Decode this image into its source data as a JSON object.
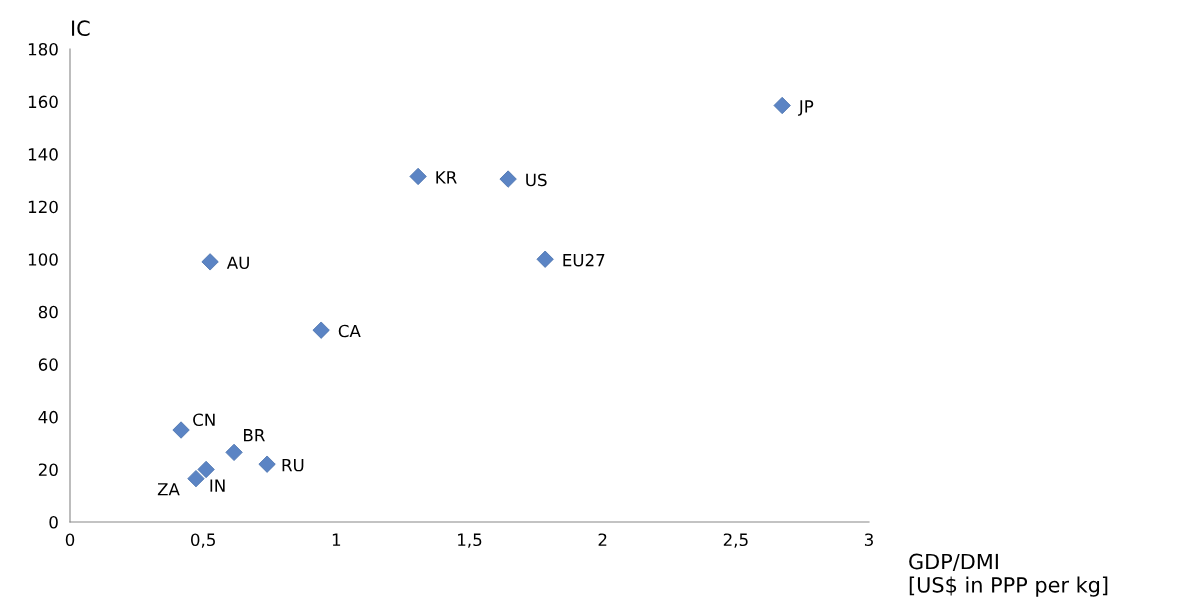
{
  "chart_data": {
    "type": "scatter",
    "xlabel": "GDP/DMI\n[US$ in PPP per kg]",
    "ylabel": "IC",
    "x": [
      2.674,
      1.307,
      1.645,
      1.784,
      0.526,
      0.943,
      0.417,
      0.616,
      0.74,
      0.511,
      0.473
    ],
    "series": [
      {
        "color": "#5b84c4",
        "values": [
          158.5,
          131.5,
          130.5,
          100,
          99,
          73,
          35,
          26.5,
          22,
          20,
          16.5
        ]
      }
    ],
    "marker": "diamond",
    "grid": false,
    "legend": false,
    "xlim": [
      0,
      3
    ],
    "xticks": [
      0,
      {
        "value": 0.5,
        "label": "0,5"
      },
      1,
      {
        "value": 1.5,
        "label": "1,5"
      },
      2,
      {
        "value": 2.5,
        "label": "2,5"
      },
      3
    ],
    "ylim": [
      0,
      180
    ],
    "yticks": [
      0,
      20,
      40,
      60,
      80,
      100,
      120,
      140,
      160,
      180
    ],
    "annotations": [
      {
        "text": "JP",
        "x": 2.674,
        "y": 158.5
      },
      {
        "text": "KR",
        "x": 1.307,
        "y": 131.5
      },
      {
        "text": "US",
        "x": 1.645,
        "y": 130.5
      },
      {
        "text": "EU27",
        "x": 1.784,
        "y": 100
      },
      {
        "text": "AU",
        "x": 0.526,
        "y": 99
      },
      {
        "text": "CA",
        "x": 0.943,
        "y": 73
      },
      {
        "text": "CN",
        "x": 0.417,
        "y": 35
      },
      {
        "text": "BR",
        "x": 0.616,
        "y": 26.5
      },
      {
        "text": "RU",
        "x": 0.74,
        "y": 22
      },
      {
        "text": "IN",
        "x": 0.511,
        "y": 20
      },
      {
        "text": "ZA",
        "x": 0.473,
        "y": 16.5
      }
    ]
  }
}
